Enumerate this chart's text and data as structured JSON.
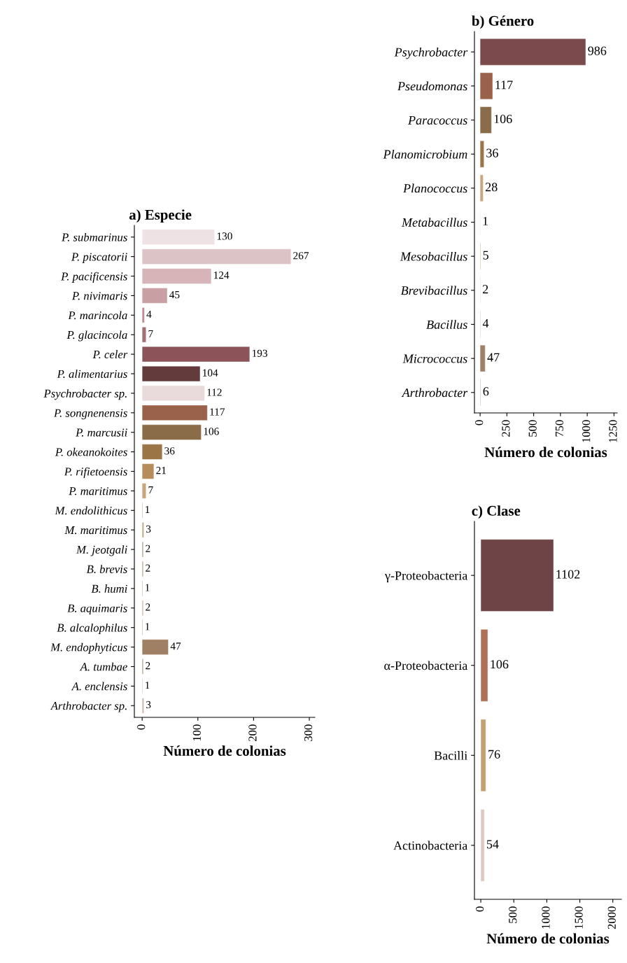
{
  "chart_data": [
    {
      "type": "bar",
      "orientation": "horizontal",
      "title": "a) Especie",
      "xlabel": "Número de colonias",
      "categories": [
        "P. submarinus",
        "P. piscatorii",
        "P. pacificensis",
        "P. nivimaris",
        "P. marincola",
        "P. glacincola",
        "P. celer",
        "P. alimentarius",
        "Psychrobacter sp.",
        "P. songnenensis",
        "P. marcusii",
        "P. okeanokoites",
        "P. rifietoensis",
        "P. maritimus",
        "M. endolithicus",
        "M. maritimus",
        "M. jeotgali",
        "B. brevis",
        "B. humi",
        "B. aquimaris",
        "B. alcalophilus",
        "M. endophyticus",
        "A. tumbae",
        "A. enclensis",
        "Arthrobacter sp."
      ],
      "values": [
        130,
        267,
        124,
        45,
        4,
        7,
        193,
        104,
        112,
        117,
        106,
        36,
        21,
        7,
        1,
        3,
        2,
        2,
        1,
        2,
        1,
        47,
        2,
        1,
        3
      ],
      "colors": [
        "#efe2e4",
        "#dcc3c6",
        "#d6b4b8",
        "#c8a0a3",
        "#b9888c",
        "#a56f73",
        "#8c5358",
        "#643b3d",
        "#e9dadb",
        "#9a624a",
        "#8a6c49",
        "#9b7545",
        "#b68d5a",
        "#c8a57a",
        "#b89c7a",
        "#c4a884",
        "#a99070",
        "#b89c7a",
        "#b89c7a",
        "#c8b090",
        "#b89c7a",
        "#a08064",
        "#b4967a",
        "#cdb8a8",
        "#cdb8a8"
      ],
      "xlim": [
        -14,
        310
      ],
      "xticks": [
        0,
        100,
        200,
        300
      ],
      "data_labels": true,
      "grid": false
    },
    {
      "type": "bar",
      "orientation": "horizontal",
      "title": "b) Género",
      "xlabel": "Número de colonias",
      "categories": [
        "Psychrobacter",
        "Pseudomonas",
        "Paracoccus",
        "Planomicrobium",
        "Planococcus",
        "Metabacillus",
        "Mesobacillus",
        "Brevibacillus",
        "Bacillus",
        "Micrococcus",
        "Arthrobacter"
      ],
      "values": [
        986,
        117,
        106,
        36,
        28,
        1,
        5,
        2,
        4,
        47,
        6
      ],
      "colors": [
        "#7b4a4c",
        "#9a624a",
        "#8a6c49",
        "#9b7545",
        "#c8a57a",
        "#b89c7a",
        "#c4a884",
        "#b89c7a",
        "#c8b090",
        "#a08064",
        "#cdb8a8"
      ],
      "xlim": [
        -53,
        1280
      ],
      "xticks": [
        0,
        250,
        500,
        750,
        1000,
        1250
      ],
      "data_labels": true,
      "grid": false
    },
    {
      "type": "bar",
      "orientation": "horizontal",
      "title": "c) Clase",
      "xlabel": "Número de colonias",
      "categories": [
        "γ-Proteobacteria",
        "α-Proteobacteria",
        "Bacilli",
        "Actinobacteria"
      ],
      "values": [
        1102,
        106,
        76,
        54
      ],
      "colors": [
        "#6e4446",
        "#b07058",
        "#c4a070",
        "#dcc9c0"
      ],
      "xlim": [
        -96,
        2130
      ],
      "xticks": [
        0,
        500,
        1000,
        1500,
        2000
      ],
      "data_labels": true,
      "grid": false
    }
  ]
}
